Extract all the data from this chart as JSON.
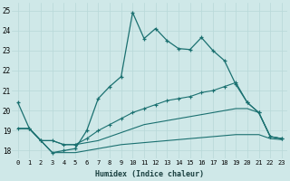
{
  "xlabel": "Humidex (Indice chaleur)",
  "background_color": "#cfe8e8",
  "grid_color": "#b8d8d8",
  "line_color": "#1a7070",
  "xlim": [
    -0.5,
    23.5
  ],
  "ylim": [
    17.6,
    25.4
  ],
  "yticks": [
    18,
    19,
    20,
    21,
    22,
    23,
    24,
    25
  ],
  "xticks": [
    0,
    1,
    2,
    3,
    4,
    5,
    6,
    7,
    8,
    9,
    10,
    11,
    12,
    13,
    14,
    15,
    16,
    17,
    18,
    19,
    20,
    21,
    22,
    23
  ],
  "series1_x": [
    0,
    1,
    2,
    3,
    4,
    5,
    6,
    7,
    8,
    9,
    10,
    11,
    12,
    13,
    14,
    15,
    16,
    17,
    18,
    19,
    20,
    21,
    22,
    23
  ],
  "series1_y": [
    20.4,
    19.1,
    18.5,
    17.9,
    18.0,
    18.1,
    19.0,
    20.6,
    21.2,
    21.7,
    24.9,
    23.6,
    24.1,
    23.5,
    23.1,
    23.05,
    23.65,
    23.0,
    22.5,
    21.3,
    20.4,
    19.9,
    18.7,
    18.6
  ],
  "series2_x": [
    0,
    1,
    2,
    3,
    4,
    5,
    6,
    7,
    8,
    9,
    10,
    11,
    12,
    13,
    14,
    15,
    16,
    17,
    18,
    19,
    20,
    21,
    22,
    23
  ],
  "series2_y": [
    19.1,
    19.1,
    18.5,
    18.5,
    18.3,
    18.3,
    18.6,
    19.0,
    19.3,
    19.6,
    19.9,
    20.1,
    20.3,
    20.5,
    20.6,
    20.7,
    20.9,
    21.0,
    21.2,
    21.4,
    20.4,
    19.9,
    18.7,
    18.6
  ],
  "series3_x": [
    0,
    1,
    2,
    3,
    4,
    5,
    6,
    7,
    8,
    9,
    10,
    11,
    12,
    13,
    14,
    15,
    16,
    17,
    18,
    19,
    20,
    21,
    22,
    23
  ],
  "series3_y": [
    19.1,
    19.1,
    18.5,
    18.5,
    18.3,
    18.3,
    18.4,
    18.5,
    18.7,
    18.9,
    19.1,
    19.3,
    19.4,
    19.5,
    19.6,
    19.7,
    19.8,
    19.9,
    20.0,
    20.1,
    20.1,
    19.9,
    18.7,
    18.6
  ],
  "series4_x": [
    0,
    1,
    2,
    3,
    4,
    5,
    6,
    7,
    8,
    9,
    10,
    11,
    12,
    13,
    14,
    15,
    16,
    17,
    18,
    19,
    20,
    21,
    22,
    23
  ],
  "series4_y": [
    19.1,
    19.1,
    18.5,
    17.9,
    17.9,
    17.9,
    18.0,
    18.1,
    18.2,
    18.3,
    18.35,
    18.4,
    18.45,
    18.5,
    18.55,
    18.6,
    18.65,
    18.7,
    18.75,
    18.8,
    18.8,
    18.8,
    18.6,
    18.55
  ]
}
